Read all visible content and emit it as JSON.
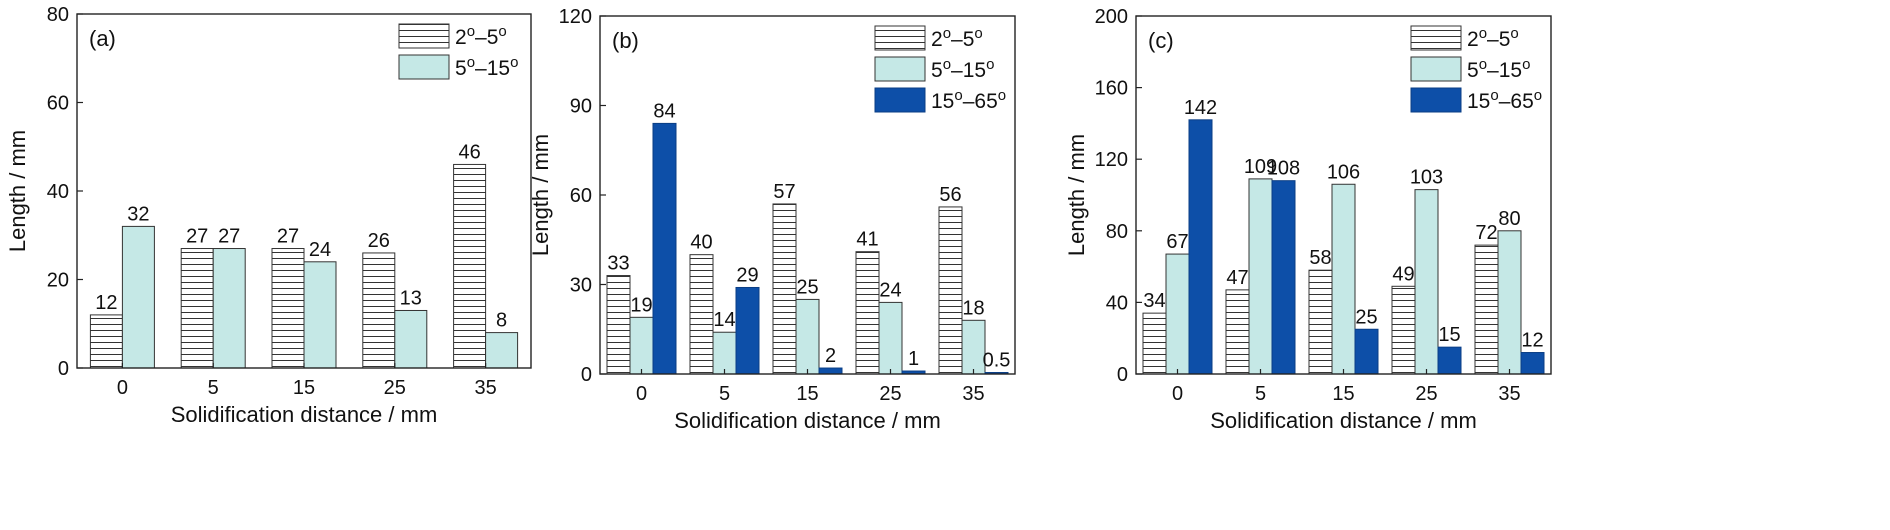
{
  "chart_data": [
    {
      "type": "bar",
      "panel_label": "(a)",
      "categories": [
        "0",
        "5",
        "15",
        "25",
        "35"
      ],
      "series": [
        {
          "name": "2o–5o",
          "values": [
            12,
            27,
            27,
            26,
            46
          ],
          "pattern": "hatch"
        },
        {
          "name": "5o–15o",
          "values": [
            32,
            27,
            24,
            13,
            8
          ],
          "color": "#c5e8e6"
        }
      ],
      "value_labels": [
        [
          "12",
          "27",
          "27",
          "26",
          "46"
        ],
        [
          "32",
          "27",
          "24",
          "13",
          "8"
        ]
      ],
      "xlabel": "Solidification distance / mm",
      "ylabel": "Length / mm",
      "ylim": [
        0,
        80
      ],
      "yticks": [
        0,
        20,
        40,
        60,
        80
      ],
      "legend_position": "top-right",
      "grid": false
    },
    {
      "type": "bar",
      "panel_label": "(b)",
      "categories": [
        "0",
        "5",
        "15",
        "25",
        "35"
      ],
      "series": [
        {
          "name": "2o–5o",
          "values": [
            33,
            40,
            57,
            41,
            56
          ],
          "pattern": "hatch"
        },
        {
          "name": "5o–15o",
          "values": [
            19,
            14,
            25,
            24,
            18
          ],
          "color": "#c5e8e6"
        },
        {
          "name": "15o–65o",
          "values": [
            84,
            29,
            2,
            1,
            0.5
          ],
          "color": "#0d4fa8"
        }
      ],
      "value_labels": [
        [
          "33",
          "40",
          "57",
          "41",
          "56"
        ],
        [
          "19",
          "14",
          "25",
          "24",
          "18"
        ],
        [
          "84",
          "29",
          "2",
          "1",
          "0.5"
        ]
      ],
      "xlabel": "Solidification distance / mm",
      "ylabel": "Length / mm",
      "ylim": [
        0,
        120
      ],
      "yticks": [
        0,
        30,
        60,
        90,
        120
      ],
      "legend_position": "top-right",
      "grid": false
    },
    {
      "type": "bar",
      "panel_label": "(c)",
      "categories": [
        "0",
        "5",
        "15",
        "25",
        "35"
      ],
      "series": [
        {
          "name": "2o–5o",
          "values": [
            34,
            47,
            58,
            49,
            72
          ],
          "pattern": "hatch"
        },
        {
          "name": "5o–15o",
          "values": [
            67,
            109,
            106,
            103,
            80
          ],
          "color": "#c5e8e6"
        },
        {
          "name": "15o–65o",
          "values": [
            142,
            108,
            25,
            15,
            12
          ],
          "color": "#0d4fa8"
        }
      ],
      "value_labels": [
        [
          "34",
          "47",
          "58",
          "49",
          "72"
        ],
        [
          "67",
          "109",
          "106",
          "103",
          "80"
        ],
        [
          "142",
          "108",
          "25",
          "15",
          "12"
        ]
      ],
      "xlabel": "Solidification distance / mm",
      "ylabel": "Length / mm",
      "ylim": [
        0,
        200
      ],
      "yticks": [
        0,
        40,
        80,
        120,
        160,
        200
      ],
      "legend_position": "top-right",
      "grid": false
    }
  ],
  "legend_text": [
    {
      "lo": "2",
      "hi": "5"
    },
    {
      "lo": "5",
      "hi": "15"
    },
    {
      "lo": "15",
      "hi": "65"
    }
  ],
  "colors": {
    "hatch_fill": "#ffffff",
    "hatch_line": "#333333",
    "series_2": "#c5e8e6",
    "series_3": "#0d4fa8",
    "axis": "#222222"
  }
}
